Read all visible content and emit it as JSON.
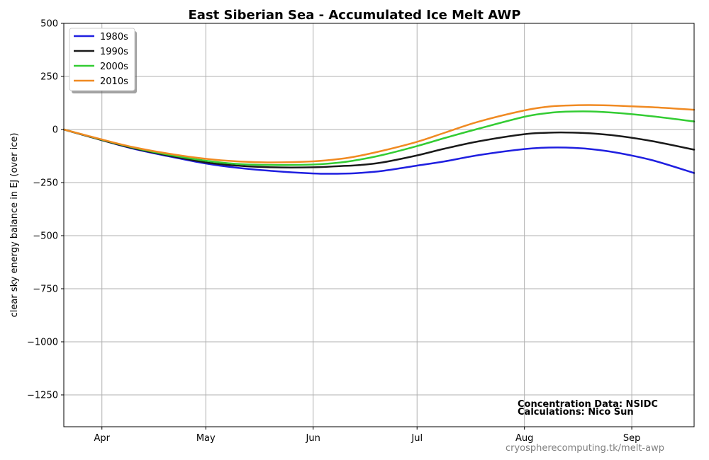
{
  "chart_data": {
    "type": "line",
    "title": "East Siberian Sea - Accumulated Ice Melt AWP",
    "ylabel": "clear sky energy balance in  EJ (over ice)",
    "xlabel": "",
    "x_unit": "day of year",
    "xlim": [
      80,
      262
    ],
    "ylim": [
      -1400,
      500
    ],
    "x_ticks": [
      {
        "label": "Apr",
        "value": 91
      },
      {
        "label": "May",
        "value": 121
      },
      {
        "label": "Jun",
        "value": 152
      },
      {
        "label": "Jul",
        "value": 182
      },
      {
        "label": "Aug",
        "value": 213
      },
      {
        "label": "Sep",
        "value": 244
      }
    ],
    "y_ticks": [
      {
        "label": "500",
        "value": 500
      },
      {
        "label": "250",
        "value": 250
      },
      {
        "label": "0",
        "value": 0
      },
      {
        "label": "−250",
        "value": -250
      },
      {
        "label": "−500",
        "value": -500
      },
      {
        "label": "−750",
        "value": -750
      },
      {
        "label": "−1000",
        "value": -1000
      },
      {
        "label": "−1250",
        "value": -1250
      }
    ],
    "grid": true,
    "legend_position": "top-left",
    "series": [
      {
        "name": "1980s",
        "color": "#1f1fe0",
        "x": [
          80,
          91,
          100,
          110,
          121,
          130,
          140,
          152,
          160,
          165,
          172,
          182,
          190,
          200,
          213,
          220,
          225,
          232,
          240,
          250,
          262
        ],
        "y": [
          0,
          -50,
          -90,
          -125,
          -160,
          -180,
          -195,
          -207,
          -208,
          -205,
          -195,
          -170,
          -150,
          -120,
          -92,
          -85,
          -85,
          -92,
          -110,
          -145,
          -205
        ]
      },
      {
        "name": "1990s",
        "color": "#1a1a1a",
        "x": [
          80,
          91,
          100,
          110,
          121,
          130,
          140,
          152,
          160,
          165,
          172,
          182,
          190,
          200,
          213,
          220,
          225,
          232,
          240,
          250,
          262
        ],
        "y": [
          0,
          -50,
          -88,
          -122,
          -155,
          -170,
          -178,
          -178,
          -172,
          -168,
          -155,
          -122,
          -90,
          -55,
          -22,
          -15,
          -14,
          -18,
          -30,
          -55,
          -95
        ]
      },
      {
        "name": "2000s",
        "color": "#33cc33",
        "x": [
          80,
          91,
          100,
          110,
          121,
          130,
          140,
          152,
          160,
          165,
          172,
          182,
          190,
          200,
          213,
          220,
          225,
          232,
          240,
          250,
          262
        ],
        "y": [
          0,
          -48,
          -85,
          -118,
          -147,
          -162,
          -167,
          -165,
          -155,
          -143,
          -120,
          -78,
          -40,
          5,
          60,
          78,
          84,
          85,
          78,
          62,
          38
        ]
      },
      {
        "name": "2010s",
        "color": "#f08a22",
        "x": [
          80,
          91,
          100,
          110,
          121,
          130,
          140,
          152,
          160,
          165,
          172,
          182,
          190,
          200,
          213,
          220,
          225,
          232,
          240,
          250,
          262
        ],
        "y": [
          0,
          -47,
          -83,
          -113,
          -138,
          -150,
          -155,
          -150,
          -138,
          -125,
          -100,
          -58,
          -15,
          38,
          90,
          108,
          113,
          115,
          112,
          105,
          93
        ]
      }
    ],
    "annotations": [
      "Concentration Data: NSIDC",
      "Calculations: Nico Sun"
    ],
    "credit": "cryospherecomputing.tk/melt-awp"
  }
}
